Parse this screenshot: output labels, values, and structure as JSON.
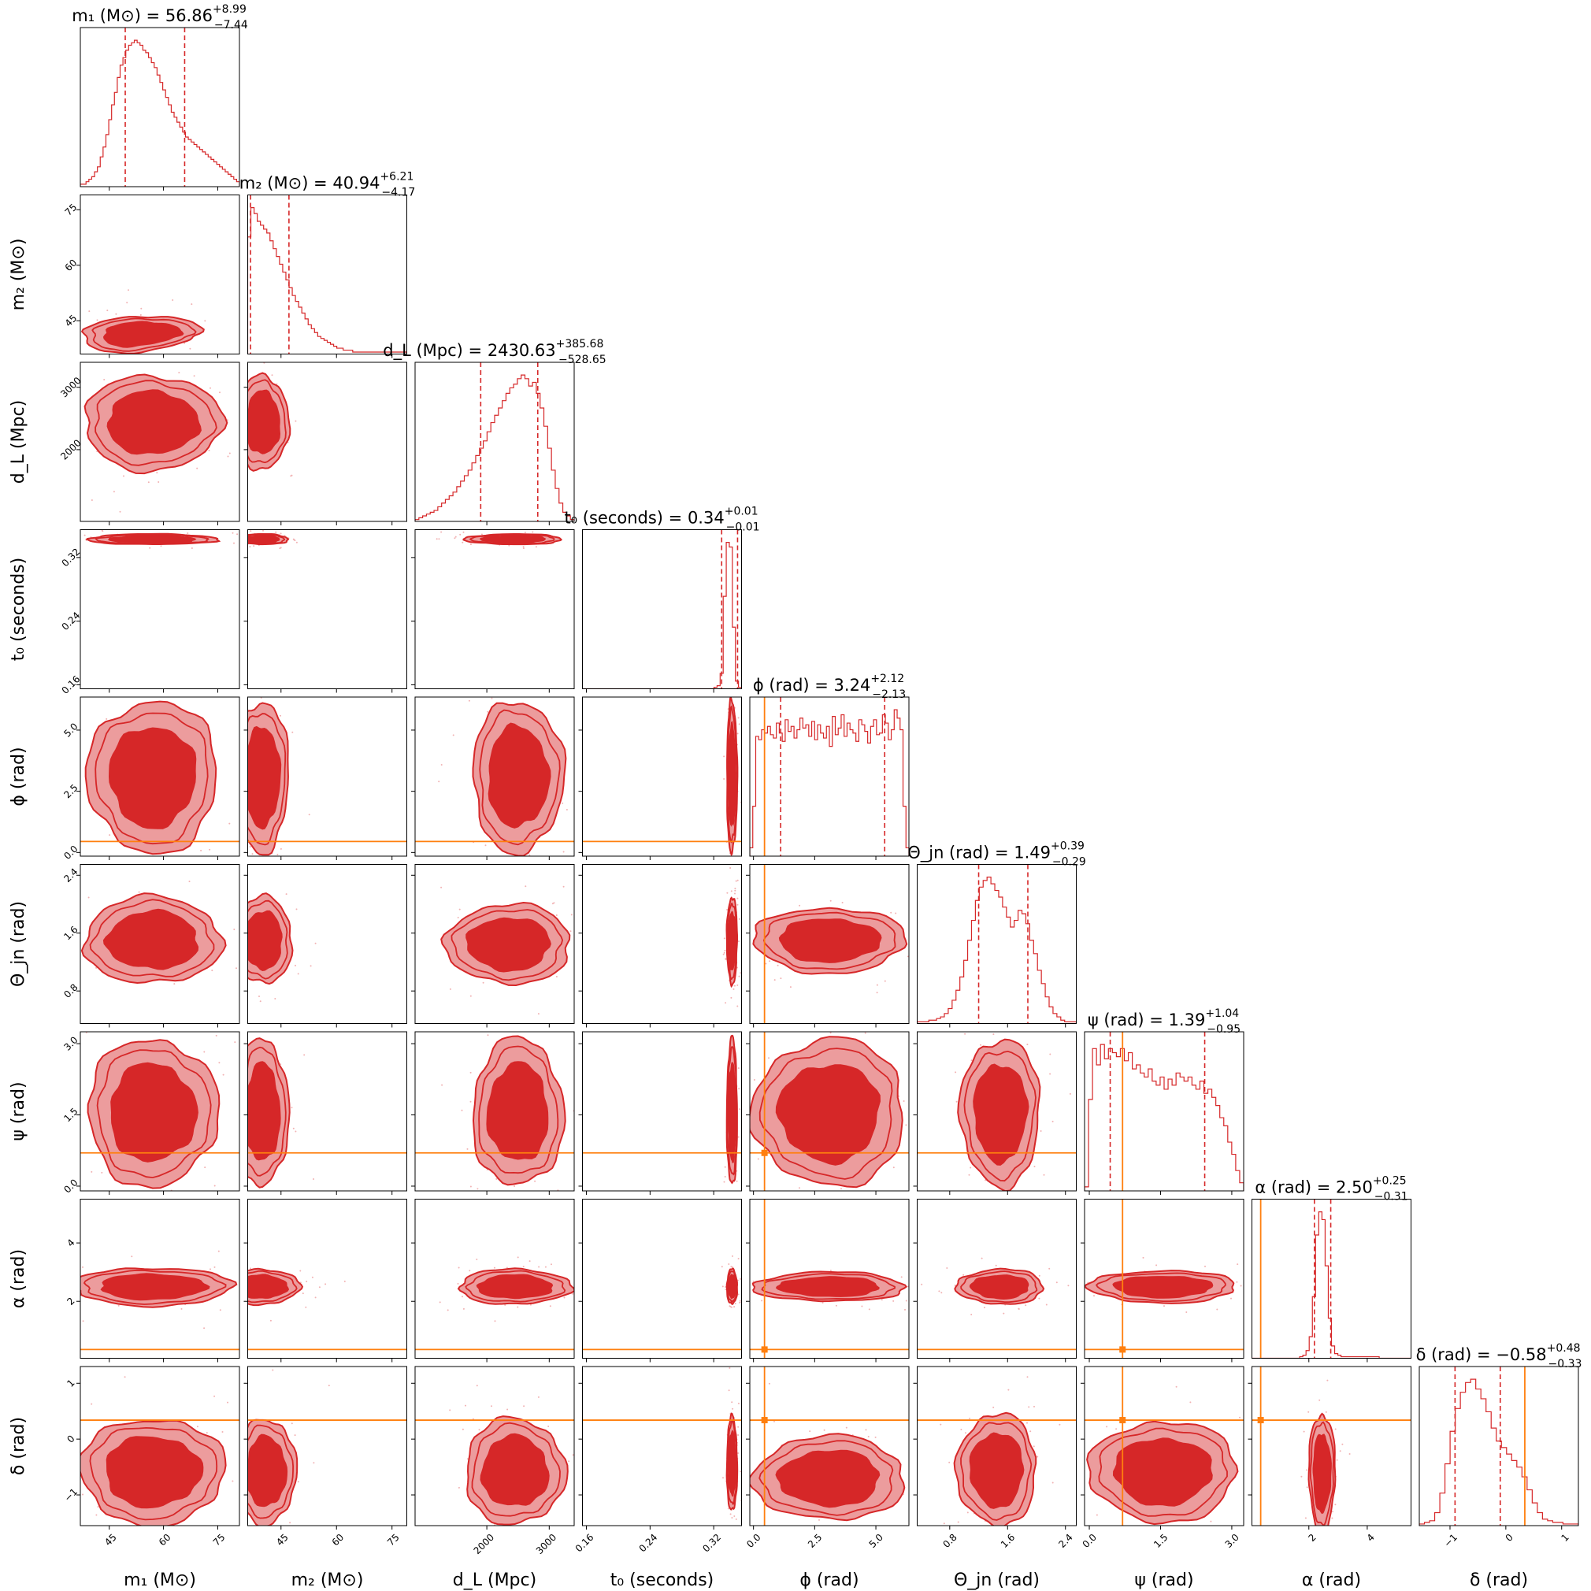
{
  "chart_data": {
    "type": "corner",
    "parameters": [
      {
        "key": "m1",
        "axis_label": "m₁ (M⊙)",
        "title": {
          "prefix": "m₁ (M⊙) = ",
          "median": "56.86",
          "plus": "+8.99",
          "minus": "−7.44"
        },
        "range": [
          37,
          81
        ],
        "ticks": [
          45,
          60,
          75
        ],
        "tick_labels": [
          "45",
          "60",
          "75"
        ],
        "median": 56.86,
        "q16": 49.42,
        "q84": 65.85,
        "truth": null,
        "hist": [
          1,
          1,
          2,
          3,
          4,
          6,
          8,
          12,
          16,
          21,
          27,
          33,
          38,
          44,
          49,
          52,
          55,
          57,
          58,
          59,
          58,
          57,
          55,
          54,
          52,
          50,
          48,
          45,
          42,
          39,
          36,
          33,
          30,
          28,
          26,
          24,
          22,
          20,
          19,
          18,
          17,
          16,
          15,
          14,
          13,
          12,
          11,
          10,
          9,
          8,
          7,
          6,
          5,
          4,
          3,
          2
        ]
      },
      {
        "key": "m2",
        "axis_label": "m₂ (M⊙)",
        "title": {
          "prefix": "m₂ (M⊙) = ",
          "median": "40.94",
          "plus": "+6.21",
          "minus": "−4.17"
        },
        "range": [
          36,
          79
        ],
        "ticks": [
          45,
          60,
          75
        ],
        "tick_labels": [
          "45",
          "60",
          "75"
        ],
        "median": 40.94,
        "q16": 36.77,
        "q84": 47.15,
        "truth": null,
        "hist": [
          60,
          75,
          72,
          68,
          66,
          64,
          62,
          58,
          54,
          50,
          46,
          42,
          38,
          34,
          30,
          27,
          24,
          21,
          18,
          15,
          13,
          11,
          9,
          8,
          7,
          6,
          5,
          4,
          3,
          3,
          2,
          2,
          2,
          1,
          1,
          1,
          1,
          1,
          1,
          1,
          1,
          1,
          1,
          1,
          1,
          1,
          1,
          1,
          1,
          1
        ]
      },
      {
        "key": "dL",
        "axis_label": "d_L (Mpc)",
        "title": {
          "prefix": "d_L (Mpc) = ",
          "median": "2430.63",
          "plus": "+385.68",
          "minus": "−528.65"
        },
        "range": [
          850,
          3400
        ],
        "ticks": [
          2000,
          3000
        ],
        "tick_labels": [
          "2000",
          "3000"
        ],
        "median": 2430.63,
        "q16": 1901.98,
        "q84": 2816.31,
        "truth": null,
        "hist": [
          1,
          2,
          3,
          4,
          5,
          6,
          8,
          10,
          12,
          14,
          16,
          19,
          22,
          25,
          28,
          32,
          36,
          40,
          44,
          49,
          54,
          58,
          62,
          66,
          70,
          73,
          75,
          78,
          80,
          78,
          74,
          76,
          70,
          62,
          52,
          40,
          28,
          18,
          10,
          5,
          3,
          1
        ]
      },
      {
        "key": "t0",
        "axis_label": "t₀ (seconds)",
        "title": {
          "prefix": "t₀ (seconds) = ",
          "median": "0.34",
          "plus": "+0.01",
          "minus": "−0.01"
        },
        "range": [
          0.155,
          0.355
        ],
        "ticks": [
          0.16,
          0.24,
          0.32
        ],
        "tick_labels": [
          "0.16",
          "0.24",
          "0.32"
        ],
        "median": 0.34,
        "q16": 0.33,
        "q84": 0.35,
        "truth": null,
        "hist": [
          0,
          0,
          0,
          0,
          0,
          0,
          0,
          0,
          0,
          0,
          0,
          0,
          0,
          0,
          0,
          0,
          0,
          0,
          0,
          0,
          0,
          0,
          0,
          0,
          0,
          0,
          0,
          0,
          0,
          0,
          0,
          0,
          0,
          0,
          0,
          0,
          0,
          0,
          0,
          0,
          0,
          0,
          0,
          1,
          2,
          10,
          60,
          95,
          92,
          40,
          5,
          1
        ]
      },
      {
        "key": "phi",
        "axis_label": "ϕ (rad)",
        "title": {
          "prefix": "ϕ (rad) = ",
          "median": "3.24",
          "plus": "+2.12",
          "minus": "−2.13"
        },
        "range": [
          -0.15,
          6.35
        ],
        "ticks": [
          0.0,
          2.5,
          5.0
        ],
        "tick_labels": [
          "0.0",
          "2.5",
          "5.0"
        ],
        "median": 3.24,
        "q16": 1.11,
        "q84": 5.36,
        "truth": 0.45,
        "hist": [
          5,
          30,
          72,
          70,
          76,
          74,
          78,
          73,
          71,
          80,
          74,
          69,
          82,
          75,
          78,
          71,
          76,
          83,
          77,
          79,
          72,
          81,
          70,
          79,
          74,
          71,
          78,
          66,
          84,
          73,
          77,
          85,
          72,
          80,
          76,
          74,
          69,
          82,
          79,
          75,
          68,
          78,
          82,
          73,
          74,
          85,
          80,
          70,
          76,
          88,
          83,
          76,
          30,
          5
        ]
      },
      {
        "key": "theta_jn",
        "axis_label": "Θ_jn (rad)",
        "title": {
          "prefix": "Θ_jn (rad) = ",
          "median": "1.49",
          "plus": "+0.39",
          "minus": "−0.29"
        },
        "range": [
          0.35,
          2.55
        ],
        "ticks": [
          0.8,
          1.6,
          2.4
        ],
        "tick_labels": [
          "0.8",
          "1.6",
          "2.4"
        ],
        "median": 1.49,
        "q16": 1.2,
        "q84": 1.88,
        "truth": null,
        "hist": [
          1,
          1,
          1,
          2,
          2,
          3,
          4,
          6,
          9,
          14,
          20,
          28,
          38,
          50,
          62,
          74,
          82,
          86,
          88,
          84,
          80,
          76,
          70,
          64,
          58,
          62,
          68,
          66,
          60,
          50,
          42,
          32,
          24,
          16,
          10,
          6,
          4,
          2,
          1,
          1,
          1
        ]
      },
      {
        "key": "psi",
        "axis_label": "ψ (rad)",
        "title": {
          "prefix": "ψ (rad) = ",
          "median": "1.39",
          "plus": "+1.04",
          "minus": "−0.95"
        },
        "range": [
          -0.1,
          3.25
        ],
        "ticks": [
          0.0,
          1.5,
          3.0
        ],
        "tick_labels": [
          "0.0",
          "1.5",
          "3.0"
        ],
        "median": 1.39,
        "q16": 0.44,
        "q84": 2.43,
        "truth": 0.7,
        "hist": [
          2,
          45,
          70,
          62,
          72,
          65,
          70,
          68,
          66,
          70,
          64,
          68,
          60,
          62,
          58,
          56,
          60,
          54,
          52,
          56,
          50,
          55,
          52,
          58,
          56,
          54,
          56,
          52,
          50,
          54,
          48,
          50,
          46,
          42,
          36,
          32,
          24,
          18,
          10,
          4
        ]
      },
      {
        "key": "alpha",
        "axis_label": "α (rad)",
        "title": {
          "prefix": "α (rad) = ",
          "median": "2.50",
          "plus": "+0.25",
          "minus": "−0.31"
        },
        "range": [
          0.05,
          5.5
        ],
        "ticks": [
          2,
          4
        ],
        "tick_labels": [
          "2",
          "4"
        ],
        "median": 2.5,
        "q16": 2.19,
        "q84": 2.75,
        "truth": 0.35,
        "hist": [
          0,
          0,
          0,
          0,
          0,
          0,
          0,
          0,
          0,
          0,
          0,
          0,
          0,
          0,
          0,
          1,
          2,
          5,
          14,
          40,
          80,
          95,
          90,
          60,
          26,
          8,
          3,
          2,
          1,
          1,
          1,
          1,
          1,
          1,
          1,
          1,
          1,
          1,
          1,
          1,
          0,
          0,
          0,
          0,
          0,
          0,
          0,
          0,
          0,
          0
        ]
      },
      {
        "key": "delta",
        "axis_label": "δ (rad)",
        "title": {
          "prefix": "δ (rad) = ",
          "median": "−0.58",
          "plus": "+0.48",
          "minus": "−0.33"
        },
        "range": [
          -1.55,
          1.3
        ],
        "ticks": [
          -1,
          0,
          1
        ],
        "tick_labels": [
          "−1",
          "0",
          "1"
        ],
        "median": -0.58,
        "q16": -0.91,
        "q84": -0.1,
        "truth": 0.34,
        "hist": [
          1,
          2,
          3,
          8,
          20,
          38,
          58,
          72,
          82,
          88,
          90,
          84,
          78,
          70,
          60,
          52,
          48,
          44,
          40,
          36,
          30,
          22,
          14,
          8,
          4,
          3,
          2,
          2,
          1,
          1,
          1
        ]
      }
    ],
    "pairs": [
      {
        "x": "m1",
        "y": "m2",
        "center": [
          54,
          41.5
        ],
        "radius": [
          16,
          6
        ],
        "wedge": true
      },
      {
        "x": "m1",
        "y": "dL",
        "center": [
          57,
          2430
        ],
        "radius": [
          19,
          760
        ]
      },
      {
        "x": "m2",
        "y": "dL",
        "center": [
          40,
          2430
        ],
        "radius": [
          7,
          760
        ]
      },
      {
        "x": "m1",
        "y": "t0",
        "center": [
          57,
          0.343
        ],
        "radius": [
          18,
          0.0065
        ]
      },
      {
        "x": "m2",
        "y": "t0",
        "center": [
          40,
          0.343
        ],
        "radius": [
          7,
          0.0065
        ]
      },
      {
        "x": "dL",
        "y": "t0",
        "center": [
          2430,
          0.343
        ],
        "radius": [
          780,
          0.0065
        ]
      },
      {
        "x": "m1",
        "y": "phi",
        "center": [
          57,
          3.1
        ],
        "radius": [
          18,
          3.1
        ]
      },
      {
        "x": "m2",
        "y": "phi",
        "center": [
          40,
          3.1
        ],
        "radius": [
          7,
          3.1
        ]
      },
      {
        "x": "dL",
        "y": "phi",
        "center": [
          2500,
          3.1
        ],
        "radius": [
          730,
          3.1
        ]
      },
      {
        "x": "t0",
        "y": "phi",
        "center": [
          0.343,
          3.1
        ],
        "radius": [
          0.0065,
          3.1
        ]
      },
      {
        "x": "m1",
        "y": "theta_jn",
        "center": [
          57,
          1.5
        ],
        "radius": [
          19,
          0.6
        ]
      },
      {
        "x": "m2",
        "y": "theta_jn",
        "center": [
          40,
          1.5
        ],
        "radius": [
          8,
          0.6
        ]
      },
      {
        "x": "dL",
        "y": "theta_jn",
        "center": [
          2350,
          1.45
        ],
        "radius": [
          1000,
          0.55
        ]
      },
      {
        "x": "t0",
        "y": "theta_jn",
        "center": [
          0.343,
          1.5
        ],
        "radius": [
          0.0065,
          0.6
        ]
      },
      {
        "x": "phi",
        "y": "theta_jn",
        "center": [
          3.1,
          1.5
        ],
        "radius": [
          3.1,
          0.45
        ]
      },
      {
        "x": "m1",
        "y": "psi",
        "center": [
          57,
          1.55
        ],
        "radius": [
          18,
          1.55
        ]
      },
      {
        "x": "m2",
        "y": "psi",
        "center": [
          40,
          1.55
        ],
        "radius": [
          7,
          1.55
        ]
      },
      {
        "x": "dL",
        "y": "psi",
        "center": [
          2500,
          1.55
        ],
        "radius": [
          730,
          1.55
        ]
      },
      {
        "x": "t0",
        "y": "psi",
        "center": [
          0.343,
          1.55
        ],
        "radius": [
          0.0065,
          1.55
        ]
      },
      {
        "x": "phi",
        "y": "psi",
        "center": [
          3.1,
          1.55
        ],
        "radius": [
          3.1,
          1.55
        ]
      },
      {
        "x": "theta_jn",
        "y": "psi",
        "center": [
          1.5,
          1.55
        ],
        "radius": [
          0.55,
          1.55
        ]
      },
      {
        "x": "m1",
        "y": "alpha",
        "center": [
          57,
          2.5
        ],
        "radius": [
          22,
          0.65
        ]
      },
      {
        "x": "m2",
        "y": "alpha",
        "center": [
          40,
          2.5
        ],
        "radius": [
          10,
          0.6
        ]
      },
      {
        "x": "dL",
        "y": "alpha",
        "center": [
          2450,
          2.5
        ],
        "radius": [
          900,
          0.6
        ]
      },
      {
        "x": "t0",
        "y": "alpha",
        "center": [
          0.343,
          2.5
        ],
        "radius": [
          0.0065,
          0.6
        ]
      },
      {
        "x": "phi",
        "y": "alpha",
        "center": [
          3.1,
          2.5
        ],
        "radius": [
          3.1,
          0.5
        ]
      },
      {
        "x": "theta_jn",
        "y": "alpha",
        "center": [
          1.5,
          2.5
        ],
        "radius": [
          0.6,
          0.6
        ]
      },
      {
        "x": "psi",
        "y": "alpha",
        "center": [
          1.55,
          2.5
        ],
        "radius": [
          1.55,
          0.55
        ]
      },
      {
        "x": "m1",
        "y": "delta",
        "center": [
          57,
          -0.58
        ],
        "radius": [
          20,
          0.95
        ]
      },
      {
        "x": "m2",
        "y": "delta",
        "center": [
          41,
          -0.58
        ],
        "radius": [
          8,
          0.95
        ]
      },
      {
        "x": "dL",
        "y": "delta",
        "center": [
          2450,
          -0.58
        ],
        "radius": [
          800,
          0.95
        ]
      },
      {
        "x": "t0",
        "y": "delta",
        "center": [
          0.343,
          -0.45
        ],
        "radius": [
          0.0065,
          0.85
        ]
      },
      {
        "x": "phi",
        "y": "delta",
        "center": [
          3.1,
          -0.7
        ],
        "radius": [
          3.1,
          0.75
        ]
      },
      {
        "x": "theta_jn",
        "y": "delta",
        "center": [
          1.45,
          -0.55
        ],
        "radius": [
          0.55,
          1.0
        ]
      },
      {
        "x": "psi",
        "y": "delta",
        "center": [
          1.55,
          -0.58
        ],
        "radius": [
          1.55,
          0.9
        ]
      },
      {
        "x": "alpha",
        "y": "delta",
        "center": [
          2.45,
          -0.6
        ],
        "radius": [
          0.45,
          1.05
        ]
      }
    ],
    "colors": {
      "hist": "#d62728",
      "quantile": "#d62728",
      "contour_inner": "#d62728",
      "contour_outer": "#ec9c9d",
      "contour_line": "#d62728",
      "scatter": "#f1b2b3",
      "truth": "#ff7f0e",
      "axis": "#000000"
    }
  }
}
